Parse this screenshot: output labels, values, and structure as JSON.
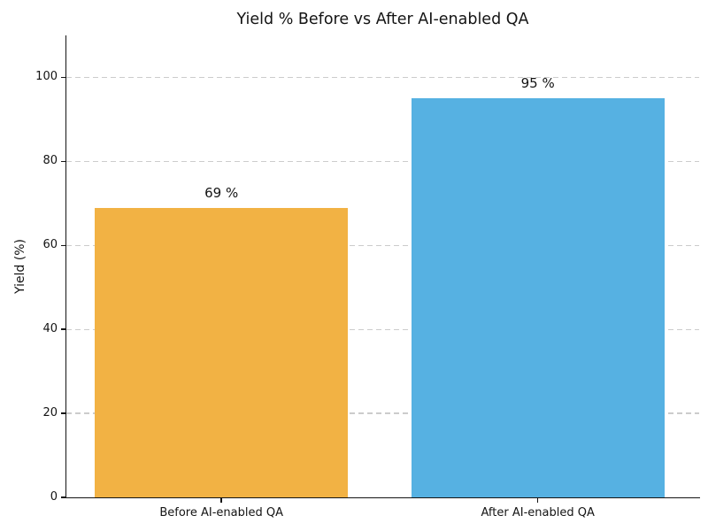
{
  "chart_data": {
    "type": "bar",
    "title": "Yield % Before vs After AI-enabled QA",
    "ylabel": "Yield (%)",
    "xlabel": "",
    "categories": [
      "Before AI-enabled QA",
      "After AI-enabled QA"
    ],
    "values": [
      69,
      95
    ],
    "value_labels": [
      "69 %",
      "95 %"
    ],
    "bar_colors": [
      "#f2b244",
      "#56b1e2"
    ],
    "yticks": [
      0,
      20,
      40,
      60,
      80,
      100
    ],
    "ylim": [
      0,
      110
    ],
    "grid": "horizontal dashed gridlines at y-ticks, drawn below bars",
    "gridline_color": "#cccccc",
    "legend": "none",
    "background_color": "#ffffff",
    "spines": "left and bottom only"
  }
}
